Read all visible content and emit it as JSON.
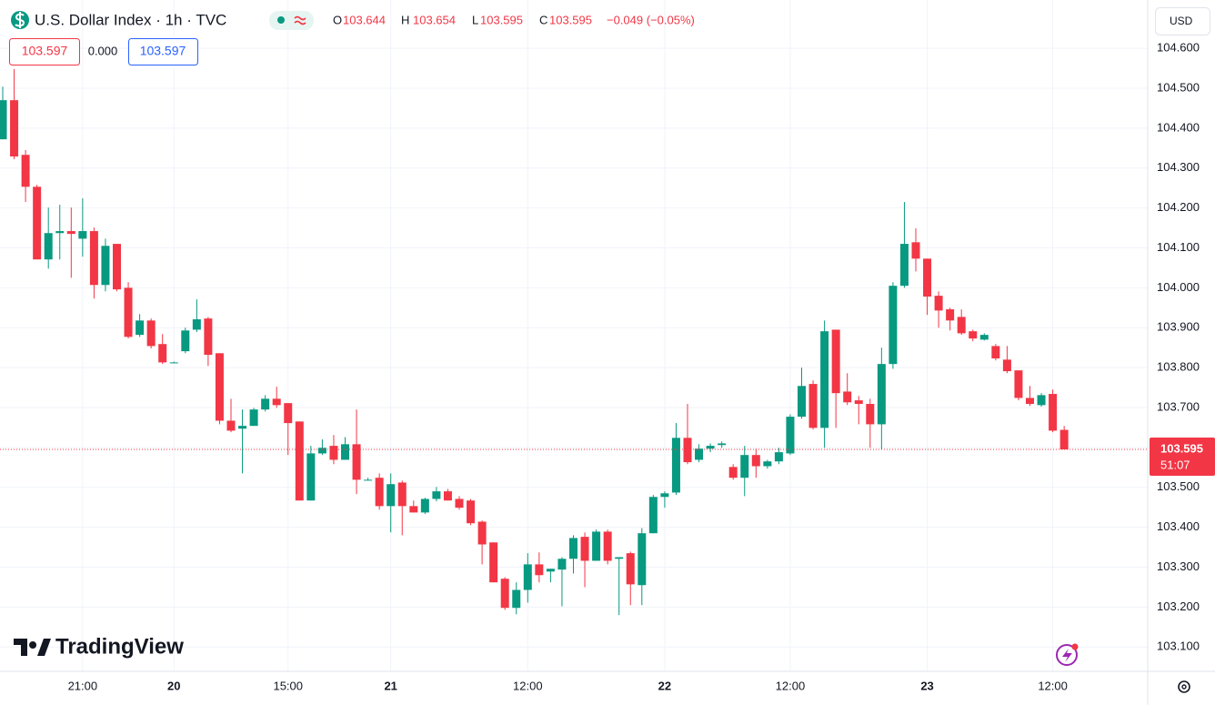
{
  "chart_data": {
    "type": "candlestick",
    "title": "U.S. Dollar Index · 1h · TVC",
    "ohlc_labels": [
      "O",
      "H",
      "L",
      "C"
    ],
    "change": "−0.049 (−0.05%)",
    "quote": {
      "bid": "103.597",
      "spread": "0.000",
      "ask": "103.597"
    },
    "currency": "USD",
    "countdown": "51:07",
    "logo": "TradingView",
    "up_color": "#089981",
    "down_color": "#f23645",
    "grid": true,
    "categories": [
      null,
      null,
      null,
      null,
      null,
      null,
      null,
      "21:00",
      null,
      null,
      null,
      null,
      null,
      null,
      null,
      "20",
      null,
      null,
      null,
      null,
      null,
      null,
      null,
      null,
      null,
      "15:00",
      null,
      null,
      null,
      null,
      null,
      null,
      null,
      null,
      "21",
      null,
      null,
      null,
      null,
      null,
      null,
      null,
      null,
      null,
      null,
      null,
      "12:00",
      null,
      null,
      null,
      null,
      null,
      null,
      null,
      null,
      null,
      null,
      null,
      "22",
      null,
      null,
      null,
      null,
      null,
      null,
      null,
      null,
      null,
      null,
      "12:00",
      null,
      null,
      null,
      null,
      null,
      null,
      null,
      null,
      null,
      null,
      null,
      "23",
      null,
      null,
      null,
      null,
      null,
      null,
      null,
      null,
      null,
      null,
      "12:00",
      null
    ],
    "open": [
      104.372,
      104.47,
      104.333,
      104.253,
      104.071,
      104.137,
      104.142,
      104.123,
      104.142,
      104.007,
      104.11,
      104.0,
      103.882,
      103.918,
      103.859,
      103.813,
      103.841,
      103.895,
      103.923,
      103.836,
      103.667,
      103.647,
      103.654,
      103.695,
      103.722,
      103.711,
      103.665,
      103.467,
      103.585,
      103.604,
      103.569,
      103.608,
      103.519,
      103.524,
      103.453,
      103.512,
      103.453,
      103.437,
      103.471,
      103.49,
      103.471,
      103.467,
      103.414,
      103.362,
      103.271,
      103.198,
      103.243,
      103.307,
      103.289,
      103.294,
      103.321,
      103.376,
      103.316,
      103.389,
      103.321,
      103.335,
      103.255,
      103.385,
      103.476,
      103.487,
      103.624,
      103.569,
      103.597,
      103.606,
      103.551,
      103.524,
      103.581,
      103.553,
      103.565,
      103.585,
      103.677,
      103.759,
      103.649,
      103.895,
      103.74,
      103.718,
      103.709,
      103.658,
      103.809,
      104.005,
      104.114,
      104.073,
      103.98,
      103.946,
      103.927,
      103.891,
      103.87,
      103.854,
      103.82,
      103.793,
      103.724,
      103.706,
      103.734,
      103.644
    ],
    "high": [
      104.504,
      104.548,
      104.345,
      104.258,
      104.201,
      104.208,
      104.201,
      104.224,
      104.151,
      104.123,
      104.11,
      104.014,
      103.934,
      103.923,
      103.884,
      103.815,
      103.9,
      103.971,
      103.927,
      103.836,
      103.722,
      103.695,
      103.699,
      103.731,
      103.752,
      103.711,
      103.665,
      103.604,
      103.62,
      103.631,
      103.626,
      103.695,
      103.524,
      103.535,
      103.535,
      103.517,
      103.467,
      103.474,
      103.501,
      103.496,
      103.478,
      103.471,
      103.417,
      103.362,
      103.275,
      103.262,
      103.335,
      103.337,
      103.296,
      103.325,
      103.38,
      103.387,
      103.394,
      103.394,
      103.325,
      103.339,
      103.398,
      103.481,
      103.49,
      103.661,
      103.709,
      103.608,
      103.61,
      103.615,
      103.558,
      103.604,
      103.597,
      103.569,
      103.599,
      103.683,
      103.8,
      103.768,
      103.918,
      103.895,
      103.786,
      103.729,
      103.722,
      103.85,
      104.014,
      104.215,
      104.149,
      104.073,
      103.991,
      103.95,
      103.946,
      103.895,
      103.886,
      103.859,
      103.854,
      103.793,
      103.754,
      103.736,
      103.745,
      103.654
    ],
    "low": [
      104.372,
      104.322,
      104.215,
      104.071,
      104.048,
      104.071,
      104.025,
      104.078,
      103.973,
      103.991,
      103.991,
      103.873,
      103.877,
      103.848,
      103.809,
      103.811,
      103.836,
      103.889,
      103.804,
      103.658,
      103.638,
      103.535,
      103.654,
      103.69,
      103.699,
      103.581,
      103.467,
      103.467,
      103.581,
      103.558,
      103.569,
      103.483,
      103.517,
      103.444,
      103.387,
      103.38,
      103.437,
      103.433,
      103.465,
      103.467,
      103.444,
      103.405,
      103.307,
      103.262,
      103.193,
      103.182,
      103.211,
      103.262,
      103.262,
      103.202,
      103.284,
      103.25,
      103.316,
      103.307,
      103.18,
      103.205,
      103.205,
      103.385,
      103.449,
      103.481,
      103.558,
      103.563,
      103.588,
      103.599,
      103.519,
      103.478,
      103.524,
      103.547,
      103.558,
      103.581,
      103.672,
      103.645,
      103.599,
      103.649,
      103.706,
      103.658,
      103.599,
      103.595,
      103.797,
      104.0,
      104.041,
      103.932,
      103.9,
      103.893,
      103.882,
      103.866,
      103.868,
      103.818,
      103.786,
      103.718,
      103.704,
      103.702,
      103.638,
      103.595
    ],
    "close": [
      104.47,
      104.329,
      104.253,
      104.071,
      104.137,
      104.142,
      104.135,
      104.142,
      104.007,
      104.105,
      103.996,
      103.877,
      103.918,
      103.854,
      103.813,
      103.813,
      103.893,
      103.921,
      103.832,
      103.667,
      103.642,
      103.654,
      103.695,
      103.722,
      103.706,
      103.661,
      103.467,
      103.585,
      103.599,
      103.569,
      103.608,
      103.519,
      103.519,
      103.453,
      103.508,
      103.453,
      103.437,
      103.471,
      103.49,
      103.467,
      103.449,
      103.41,
      103.357,
      103.262,
      103.198,
      103.243,
      103.307,
      103.28,
      103.296,
      103.321,
      103.373,
      103.316,
      103.389,
      103.316,
      103.325,
      103.257,
      103.385,
      103.476,
      103.485,
      103.624,
      103.563,
      103.597,
      103.604,
      103.61,
      103.524,
      103.581,
      103.553,
      103.565,
      103.588,
      103.677,
      103.754,
      103.649,
      103.891,
      103.736,
      103.713,
      103.709,
      103.658,
      103.809,
      104.005,
      104.11,
      104.073,
      103.978,
      103.943,
      103.918,
      103.886,
      103.873,
      103.882,
      103.823,
      103.791,
      103.724,
      103.709,
      103.731,
      103.642,
      103.595
    ],
    "ylim": [
      103.039,
      104.721
    ],
    "yticks": [
      {
        "value": 103.1,
        "label": "103.100"
      },
      {
        "value": 103.2,
        "label": "103.200"
      },
      {
        "value": 103.3,
        "label": "103.300"
      },
      {
        "value": 103.4,
        "label": "103.400"
      },
      {
        "value": 103.5,
        "label": "103.500"
      },
      {
        "value": 103.6,
        "label": "103.600"
      },
      {
        "value": 103.7,
        "label": "103.700"
      },
      {
        "value": 103.8,
        "label": "103.800"
      },
      {
        "value": 103.9,
        "label": "103.900"
      },
      {
        "value": 104.0,
        "label": "104.000"
      },
      {
        "value": 104.1,
        "label": "104.100"
      },
      {
        "value": 104.2,
        "label": "104.200"
      },
      {
        "value": 104.3,
        "label": "104.300"
      },
      {
        "value": 104.4,
        "label": "104.400"
      },
      {
        "value": 104.5,
        "label": "104.500"
      },
      {
        "value": 104.6,
        "label": "104.600"
      }
    ]
  }
}
